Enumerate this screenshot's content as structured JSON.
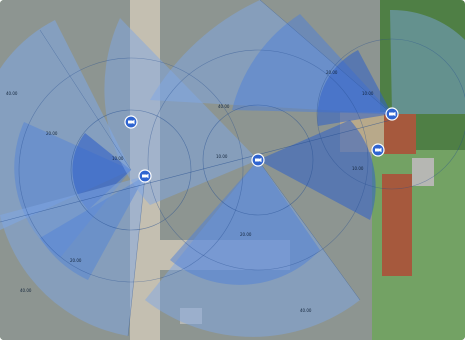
{
  "map": {
    "colors": {
      "grass": "#4f7f45",
      "grass_light": "#73a264",
      "soil": "#b8a98a",
      "pavement": "#8d9591",
      "road": "#c4bfb1",
      "roof_red": "#a6593d",
      "roof_gray": "#b6b7b3",
      "coverage_light": "#7fa8e6",
      "coverage_mid": "#4d80da",
      "coverage_dark": "#3060c8",
      "coverage_outline": "#234c8f",
      "sensor_fill": "#2f64d0"
    },
    "sensors": [
      {
        "id": "sensor-1",
        "icon": "camera-icon"
      },
      {
        "id": "sensor-2",
        "icon": "camera-icon"
      },
      {
        "id": "sensor-3",
        "icon": "camera-icon"
      },
      {
        "id": "sensor-4",
        "icon": "camera-icon"
      },
      {
        "id": "sensor-5",
        "icon": "camera-icon"
      }
    ],
    "range_labels": [
      {
        "text": "40.00"
      },
      {
        "text": "20.00"
      },
      {
        "text": "10.00"
      },
      {
        "text": "40.00"
      },
      {
        "text": "20.00"
      },
      {
        "text": "10.00"
      },
      {
        "text": "10.00"
      },
      {
        "text": "20.00"
      },
      {
        "text": "40.00"
      },
      {
        "text": "20.00"
      },
      {
        "text": "40.00"
      },
      {
        "text": "10.00"
      }
    ]
  }
}
